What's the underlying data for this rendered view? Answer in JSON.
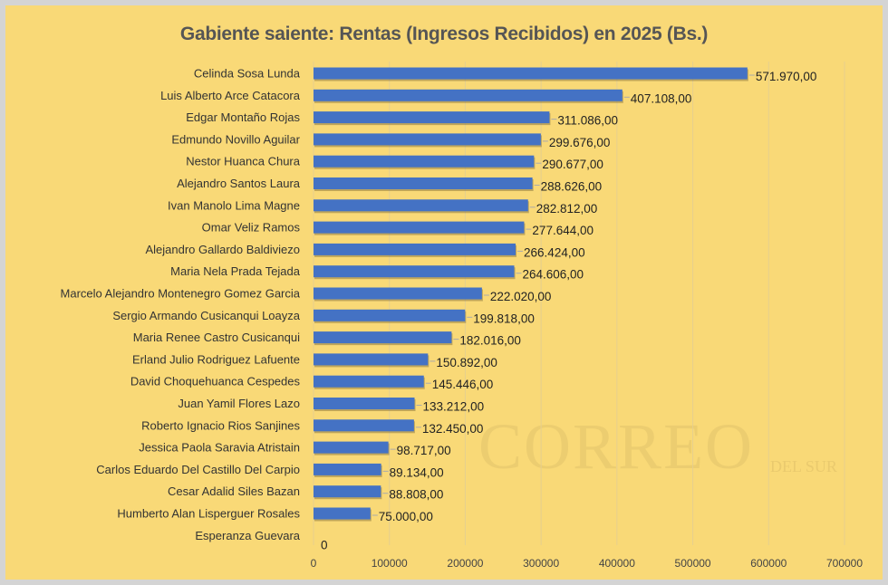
{
  "chart_data": {
    "type": "bar",
    "orientation": "horizontal",
    "title": "Gabiente saiente: Rentas (Ingresos Recibidos) en 2025 (Bs.)",
    "categories": [
      "Celinda Sosa Lunda",
      "Luis Alberto Arce Catacora",
      "Edgar Montaño Rojas",
      "Edmundo Novillo Aguilar",
      "Nestor Huanca Chura",
      "Alejandro Santos Laura",
      "Ivan Manolo Lima Magne",
      "Omar Veliz Ramos",
      "Alejandro Gallardo Baldiviezo",
      "Maria Nela Prada Tejada",
      "Marcelo Alejandro Montenegro Gomez Garcia",
      "Sergio Armando Cusicanqui Loayza",
      "Maria Renee Castro Cusicanqui",
      "Erland Julio Rodriguez Lafuente",
      "David Choquehuanca Cespedes",
      "Juan Yamil Flores Lazo",
      "Roberto Ignacio Rios Sanjines",
      "Jessica Paola Saravia Atristain",
      "Carlos Eduardo Del Castillo Del Carpio",
      "Cesar Adalid Siles Bazan",
      "Humberto Alan Lisperguer Rosales",
      "Esperanza Guevara"
    ],
    "values": [
      571970,
      407108,
      311086,
      299676,
      290677,
      288626,
      282812,
      277644,
      266424,
      264606,
      222020,
      199818,
      182016,
      150892,
      145446,
      133212,
      132450,
      98717,
      89134,
      88808,
      75000,
      0
    ],
    "data_labels": [
      "571.970,00",
      "407.108,00",
      "311.086,00",
      "299.676,00",
      "290.677,00",
      "288.626,00",
      "282.812,00",
      "277.644,00",
      "266.424,00",
      "264.606,00",
      "222.020,00",
      "199.818,00",
      "182.016,00",
      "150.892,00",
      "145.446,00",
      "133.212,00",
      "132.450,00",
      "98.717,00",
      "89.134,00",
      "88.808,00",
      "75.000,00",
      "0"
    ],
    "xlim": [
      0,
      700000
    ],
    "x_ticks": [
      "0",
      "100000",
      "200000",
      "300000",
      "400000",
      "500000",
      "600000",
      "700000"
    ],
    "grid": true,
    "bar_color": "#4472c4",
    "background_color": "#f9d977"
  },
  "watermark": "CORREO DEL SUR"
}
